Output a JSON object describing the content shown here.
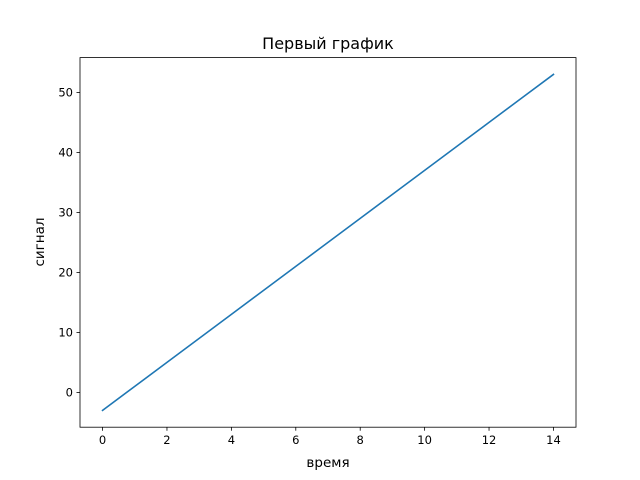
{
  "chart_data": {
    "type": "line",
    "title": "Первый график",
    "xlabel": "время",
    "ylabel": "сигнал",
    "xlim": [
      -0.7,
      14.7
    ],
    "ylim": [
      -5.8,
      55.8
    ],
    "xticks": [
      0,
      2,
      4,
      6,
      8,
      10,
      12,
      14
    ],
    "yticks": [
      0,
      10,
      20,
      30,
      40,
      50
    ],
    "grid": false,
    "series": [
      {
        "color": "#1f77b4",
        "x": [
          0,
          1,
          2,
          3,
          4,
          5,
          6,
          7,
          8,
          9,
          10,
          11,
          12,
          13,
          14
        ],
        "y": [
          -3,
          1,
          5,
          9,
          13,
          17,
          21,
          25,
          29,
          33,
          37,
          41,
          45,
          49,
          53
        ]
      }
    ]
  }
}
